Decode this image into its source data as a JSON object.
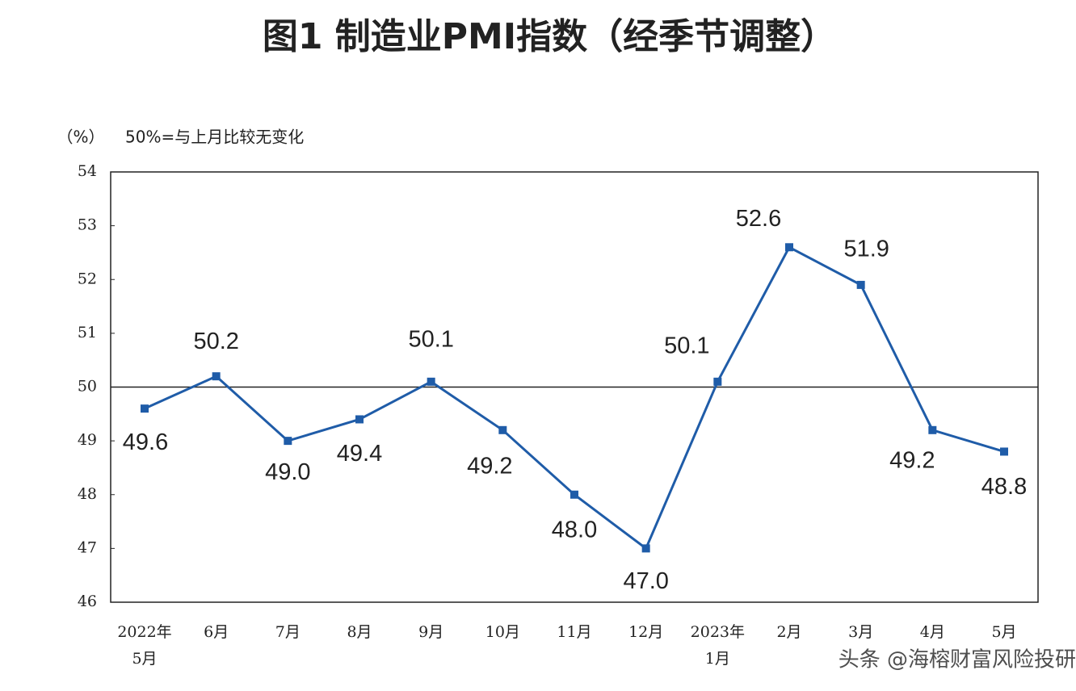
{
  "chart_data": {
    "type": "line",
    "title": "图1 制造业PMI指数（经季节调整）",
    "y_unit": "（%）",
    "annotation": "50%=与上月比较无变化",
    "watermark": "头条 @海榕财富风险投研",
    "categories": [
      [
        "2022年",
        "5月"
      ],
      "6月",
      "7月",
      "8月",
      "9月",
      "10月",
      "11月",
      "12月",
      [
        "2023年",
        "1月"
      ],
      "2月",
      "3月",
      "4月",
      "5月"
    ],
    "series": [
      {
        "name": "制造业PMI",
        "color": "#1f5ca8",
        "values": [
          49.6,
          50.2,
          49.0,
          49.4,
          50.1,
          49.2,
          48.0,
          47.0,
          50.1,
          52.6,
          51.9,
          49.2,
          48.8
        ],
        "value_labels": [
          "49.6",
          "50.2",
          "49.0",
          "49.4",
          "50.1",
          "49.2",
          "48.0",
          "47.0",
          "50.1",
          "52.6",
          "51.9",
          "49.2",
          "48.8"
        ]
      }
    ],
    "reference_line": 50,
    "ylim": [
      46,
      54
    ],
    "yticks": [
      46,
      47,
      48,
      49,
      50,
      51,
      52,
      53,
      54
    ],
    "grid": false
  }
}
